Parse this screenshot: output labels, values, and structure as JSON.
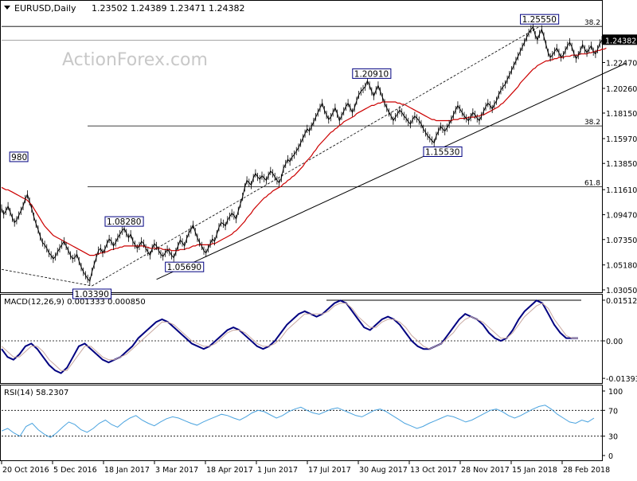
{
  "header": {
    "symbol": "EURUSD,Daily",
    "ohlc": "1.23502 1.24389 1.23471 1.24382"
  },
  "watermark": "ActionForex.com",
  "colors": {
    "price": "#000000",
    "ma": "#cc0000",
    "macd": "#000080",
    "signal": "#c8a8a0",
    "rsi": "#4aa3df",
    "tag_border": "#000080",
    "current_price_bg": "#000000",
    "grid": "#000000"
  },
  "chart_data": [
    {
      "type": "line",
      "name": "price",
      "x_tick_labels": [
        "20 Oct 2016",
        "5 Dec 2016",
        "18 Jan 2017",
        "3 Mar 2017",
        "18 Apr 2017",
        "1 Jun 2017",
        "17 Jul 2017",
        "30 Aug 2017",
        "13 Oct 2017",
        "28 Nov 2017",
        "15 Jan 2018",
        "28 Feb 2018"
      ],
      "y_tick_labels": [
        "1.24382",
        "1.22470",
        "1.20260",
        "1.18150",
        "1.15970",
        "1.13850",
        "1.11610",
        "1.09470",
        "1.07350",
        "1.05180",
        "1.03050"
      ],
      "ylim": [
        1.0305,
        1.2631
      ],
      "current_price": "1.24382",
      "annotations": [
        {
          "label": "1.25550",
          "x_index": 250,
          "y": 1.2555
        },
        {
          "label": "1.20910",
          "x_index": 172,
          "y": 1.2091
        },
        {
          "label": "1.15530",
          "x_index": 205,
          "y": 1.1553
        },
        {
          "label": "1.08280",
          "x_index": 57,
          "y": 1.0828
        },
        {
          "label": "1.05690",
          "x_index": 85,
          "y": 1.0569
        },
        {
          "label": "1.03390",
          "x_index": 42,
          "y": 1.0339
        },
        {
          "label": "980",
          "x_index": 8,
          "y": 1.138
        }
      ],
      "fib_levels": [
        {
          "label": "38.2",
          "y": 1.2555
        },
        {
          "label": "38.2",
          "y": 1.1705
        },
        {
          "label": "61.8",
          "y": 1.1185
        }
      ],
      "reference_lines": [
        1.2438
      ],
      "trendlines": [
        {
          "style": "solid",
          "from": [
            72,
            1.0395
          ],
          "to": [
            290,
            1.224
          ]
        },
        {
          "style": "dashed",
          "from": [
            42,
            1.0339
          ],
          "to": [
            250,
            1.2555
          ]
        },
        {
          "style": "dashed",
          "from": [
            0,
            1.048
          ],
          "to": [
            42,
            1.0339
          ]
        }
      ],
      "series": [
        {
          "name": "price",
          "values": [
            1.1,
            1.095,
            1.098,
            1.102,
            1.097,
            1.092,
            1.088,
            1.09,
            1.094,
            1.098,
            1.102,
            1.108,
            1.112,
            1.106,
            1.1,
            1.093,
            1.087,
            1.082,
            1.076,
            1.071,
            1.069,
            1.066,
            1.062,
            1.06,
            1.057,
            1.059,
            1.063,
            1.066,
            1.069,
            1.072,
            1.068,
            1.064,
            1.06,
            1.057,
            1.058,
            1.061,
            1.055,
            1.05,
            1.046,
            1.043,
            1.04,
            1.038,
            1.046,
            1.052,
            1.058,
            1.064,
            1.066,
            1.062,
            1.065,
            1.07,
            1.074,
            1.072,
            1.068,
            1.071,
            1.075,
            1.078,
            1.081,
            1.083,
            1.079,
            1.075,
            1.078,
            1.072,
            1.069,
            1.066,
            1.068,
            1.072,
            1.07,
            1.066,
            1.063,
            1.06,
            1.066,
            1.07,
            1.068,
            1.064,
            1.061,
            1.059,
            1.062,
            1.065,
            1.063,
            1.06,
            1.058,
            1.063,
            1.068,
            1.073,
            1.071,
            1.068,
            1.074,
            1.079,
            1.082,
            1.086,
            1.08,
            1.075,
            1.071,
            1.068,
            1.064,
            1.062,
            1.066,
            1.07,
            1.074,
            1.072,
            1.078,
            1.084,
            1.088,
            1.087,
            1.085,
            1.09,
            1.093,
            1.096,
            1.094,
            1.091,
            1.098,
            1.104,
            1.11,
            1.118,
            1.124,
            1.122,
            1.12,
            1.126,
            1.13,
            1.127,
            1.125,
            1.128,
            1.126,
            1.124,
            1.128,
            1.132,
            1.13,
            1.127,
            1.124,
            1.122,
            1.126,
            1.134,
            1.138,
            1.142,
            1.14,
            1.144,
            1.146,
            1.149,
            1.152,
            1.156,
            1.16,
            1.164,
            1.168,
            1.166,
            1.17,
            1.174,
            1.178,
            1.182,
            1.186,
            1.19,
            1.184,
            1.18,
            1.176,
            1.178,
            1.182,
            1.186,
            1.181,
            1.175,
            1.179,
            1.183,
            1.187,
            1.19,
            1.186,
            1.182,
            1.186,
            1.192,
            1.197,
            1.2,
            1.202,
            1.204,
            1.209,
            1.205,
            1.2,
            1.196,
            1.201,
            1.205,
            1.2,
            1.195,
            1.19,
            1.186,
            1.182,
            1.179,
            1.175,
            1.178,
            1.181,
            1.184,
            1.182,
            1.179,
            1.177,
            1.174,
            1.172,
            1.176,
            1.179,
            1.177,
            1.175,
            1.172,
            1.168,
            1.165,
            1.162,
            1.16,
            1.158,
            1.156,
            1.162,
            1.166,
            1.17,
            1.168,
            1.166,
            1.169,
            1.172,
            1.176,
            1.18,
            1.184,
            1.188,
            1.185,
            1.182,
            1.179,
            1.177,
            1.175,
            1.178,
            1.182,
            1.18,
            1.177,
            1.175,
            1.179,
            1.183,
            1.187,
            1.19,
            1.188,
            1.185,
            1.189,
            1.192,
            1.197,
            1.201,
            1.204,
            1.206,
            1.21,
            1.214,
            1.218,
            1.222,
            1.226,
            1.23,
            1.234,
            1.238,
            1.242,
            1.246,
            1.25,
            1.253,
            1.255,
            1.248,
            1.244,
            1.249,
            1.253,
            1.247,
            1.24,
            1.233,
            1.229,
            1.231,
            1.234,
            1.237,
            1.233,
            1.229,
            1.231,
            1.235,
            1.239,
            1.242,
            1.238,
            1.232,
            1.228,
            1.231,
            1.235,
            1.24,
            1.236,
            1.233,
            1.236,
            1.239,
            1.234,
            1.232,
            1.236,
            1.241,
            1.2438
          ]
        },
        {
          "name": "ma",
          "values": [
            1.118,
            1.117,
            1.116,
            1.116,
            1.115,
            1.114,
            1.113,
            1.112,
            1.111,
            1.11,
            1.109,
            1.108,
            1.107,
            1.105,
            1.103,
            1.1,
            1.097,
            1.094,
            1.091,
            1.088,
            1.085,
            1.083,
            1.081,
            1.079,
            1.077,
            1.076,
            1.075,
            1.074,
            1.073,
            1.072,
            1.071,
            1.07,
            1.069,
            1.068,
            1.067,
            1.066,
            1.065,
            1.064,
            1.063,
            1.062,
            1.061,
            1.06,
            1.06,
            1.06,
            1.061,
            1.061,
            1.062,
            1.062,
            1.063,
            1.063,
            1.064,
            1.065,
            1.065,
            1.066,
            1.066,
            1.067,
            1.067,
            1.068,
            1.068,
            1.068,
            1.068,
            1.068,
            1.068,
            1.068,
            1.068,
            1.068,
            1.068,
            1.067,
            1.067,
            1.066,
            1.066,
            1.066,
            1.066,
            1.066,
            1.066,
            1.065,
            1.065,
            1.065,
            1.065,
            1.064,
            1.064,
            1.064,
            1.064,
            1.065,
            1.065,
            1.065,
            1.066,
            1.066,
            1.067,
            1.068,
            1.068,
            1.069,
            1.069,
            1.069,
            1.069,
            1.069,
            1.069,
            1.069,
            1.07,
            1.07,
            1.071,
            1.072,
            1.073,
            1.074,
            1.075,
            1.076,
            1.077,
            1.078,
            1.08,
            1.081,
            1.083,
            1.085,
            1.087,
            1.089,
            1.092,
            1.094,
            1.096,
            1.099,
            1.101,
            1.103,
            1.105,
            1.107,
            1.109,
            1.11,
            1.112,
            1.113,
            1.115,
            1.116,
            1.117,
            1.118,
            1.119,
            1.121,
            1.122,
            1.124,
            1.125,
            1.127,
            1.128,
            1.13,
            1.132,
            1.134,
            1.136,
            1.139,
            1.141,
            1.143,
            1.145,
            1.148,
            1.15,
            1.153,
            1.155,
            1.157,
            1.159,
            1.161,
            1.163,
            1.165,
            1.166,
            1.168,
            1.169,
            1.171,
            1.172,
            1.174,
            1.175,
            1.176,
            1.177,
            1.178,
            1.179,
            1.181,
            1.182,
            1.183,
            1.184,
            1.185,
            1.186,
            1.187,
            1.188,
            1.188,
            1.189,
            1.19,
            1.19,
            1.191,
            1.191,
            1.191,
            1.191,
            1.191,
            1.191,
            1.191,
            1.19,
            1.19,
            1.189,
            1.189,
            1.188,
            1.187,
            1.186,
            1.185,
            1.184,
            1.183,
            1.182,
            1.181,
            1.18,
            1.179,
            1.178,
            1.177,
            1.176,
            1.176,
            1.175,
            1.175,
            1.175,
            1.175,
            1.175,
            1.175,
            1.175,
            1.175,
            1.176,
            1.176,
            1.176,
            1.177,
            1.177,
            1.177,
            1.177,
            1.178,
            1.178,
            1.178,
            1.178,
            1.179,
            1.179,
            1.18,
            1.18,
            1.181,
            1.182,
            1.183,
            1.184,
            1.185,
            1.186,
            1.187,
            1.189,
            1.19,
            1.192,
            1.194,
            1.196,
            1.198,
            1.2,
            1.202,
            1.204,
            1.207,
            1.209,
            1.211,
            1.213,
            1.215,
            1.217,
            1.219,
            1.22,
            1.222,
            1.223,
            1.224,
            1.225,
            1.226,
            1.226,
            1.227,
            1.227,
            1.228,
            1.228,
            1.229,
            1.229,
            1.229,
            1.23,
            1.23,
            1.23,
            1.231,
            1.231,
            1.231,
            1.231,
            1.232,
            1.232,
            1.232,
            1.232,
            1.233,
            1.233,
            1.234,
            1.234,
            1.235,
            1.235,
            1.236,
            1.236,
            1.237
          ]
        }
      ]
    },
    {
      "type": "line",
      "name": "macd",
      "title": "MACD(12,26,9) 0.001333 0.000850",
      "y_tick_labels": [
        "0.01512",
        "0.00",
        "-0.01393"
      ],
      "ylim": [
        -0.0139,
        0.0151
      ],
      "zero_line": 0.0,
      "reference_lines": [
        0.0151
      ],
      "series": [
        {
          "name": "macd",
          "values": [
            -0.003,
            -0.006,
            -0.007,
            -0.005,
            -0.002,
            -0.001,
            -0.003,
            -0.006,
            -0.009,
            -0.011,
            -0.012,
            -0.01,
            -0.006,
            -0.002,
            -0.001,
            -0.003,
            -0.005,
            -0.007,
            -0.008,
            -0.007,
            -0.006,
            -0.004,
            -0.002,
            0.001,
            0.003,
            0.005,
            0.007,
            0.008,
            0.007,
            0.005,
            0.003,
            0.001,
            -0.001,
            -0.002,
            -0.003,
            -0.002,
            0.0,
            0.002,
            0.004,
            0.005,
            0.004,
            0.002,
            0.0,
            -0.002,
            -0.003,
            -0.002,
            0.0,
            0.003,
            0.006,
            0.008,
            0.01,
            0.011,
            0.01,
            0.009,
            0.01,
            0.012,
            0.014,
            0.015,
            0.014,
            0.011,
            0.008,
            0.005,
            0.004,
            0.006,
            0.008,
            0.009,
            0.008,
            0.006,
            0.003,
            0.0,
            -0.002,
            -0.003,
            -0.003,
            -0.002,
            -0.001,
            0.002,
            0.005,
            0.008,
            0.01,
            0.009,
            0.008,
            0.006,
            0.003,
            0.001,
            0.0,
            0.001,
            0.004,
            0.008,
            0.011,
            0.013,
            0.015,
            0.014,
            0.01,
            0.006,
            0.003,
            0.001,
            0.001,
            0.001
          ]
        },
        {
          "name": "signal",
          "values": [
            -0.002,
            -0.004,
            -0.006,
            -0.006,
            -0.004,
            -0.002,
            -0.002,
            -0.004,
            -0.007,
            -0.009,
            -0.011,
            -0.011,
            -0.008,
            -0.005,
            -0.002,
            -0.002,
            -0.004,
            -0.006,
            -0.007,
            -0.007,
            -0.006,
            -0.005,
            -0.003,
            -0.001,
            0.001,
            0.003,
            0.005,
            0.007,
            0.007,
            0.006,
            0.004,
            0.002,
            0.0,
            -0.001,
            -0.002,
            -0.002,
            -0.001,
            0.001,
            0.003,
            0.004,
            0.004,
            0.003,
            0.001,
            -0.001,
            -0.002,
            -0.002,
            -0.001,
            0.001,
            0.004,
            0.006,
            0.008,
            0.01,
            0.01,
            0.01,
            0.01,
            0.011,
            0.013,
            0.014,
            0.014,
            0.012,
            0.009,
            0.007,
            0.005,
            0.005,
            0.007,
            0.008,
            0.008,
            0.007,
            0.005,
            0.002,
            0.0,
            -0.002,
            -0.003,
            -0.002,
            -0.001,
            0.001,
            0.003,
            0.006,
            0.008,
            0.009,
            0.008,
            0.007,
            0.005,
            0.003,
            0.001,
            0.001,
            0.003,
            0.006,
            0.009,
            0.011,
            0.013,
            0.014,
            0.012,
            0.008,
            0.005,
            0.002,
            0.001,
            0.001
          ]
        }
      ]
    },
    {
      "type": "line",
      "name": "rsi",
      "title": "RSI(14) 58.2307",
      "y_tick_labels": [
        "100",
        "70",
        "30",
        "0"
      ],
      "ylim": [
        0,
        100
      ],
      "levels": [
        70,
        30
      ],
      "series": [
        {
          "name": "rsi",
          "values": [
            38,
            42,
            35,
            30,
            45,
            50,
            40,
            33,
            28,
            35,
            44,
            52,
            48,
            40,
            36,
            42,
            50,
            55,
            48,
            44,
            52,
            58,
            62,
            55,
            50,
            46,
            52,
            57,
            60,
            58,
            54,
            50,
            47,
            52,
            56,
            60,
            64,
            62,
            58,
            55,
            60,
            66,
            70,
            68,
            63,
            58,
            62,
            68,
            72,
            75,
            70,
            66,
            64,
            68,
            72,
            74,
            70,
            66,
            62,
            60,
            65,
            70,
            72,
            68,
            62,
            56,
            50,
            46,
            42,
            45,
            50,
            54,
            58,
            62,
            60,
            56,
            52,
            55,
            60,
            65,
            70,
            72,
            68,
            62,
            58,
            62,
            67,
            72,
            76,
            78,
            72,
            64,
            58,
            52,
            50,
            55,
            52,
            58
          ]
        }
      ]
    }
  ]
}
